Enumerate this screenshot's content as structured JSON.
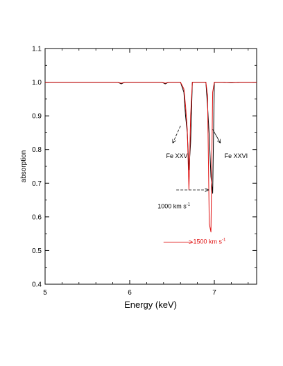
{
  "chart_data": {
    "type": "line",
    "xlabel": "Energy (keV)",
    "ylabel": "absorption",
    "xlim": [
      5,
      7.5
    ],
    "ylim": [
      0.4,
      1.1
    ],
    "x_ticks": [
      5,
      6,
      7
    ],
    "x_tick_labels": [
      "5",
      "6",
      "7"
    ],
    "y_ticks": [
      0.4,
      0.5,
      0.6,
      0.7,
      0.8,
      0.9,
      1.0,
      1.1
    ],
    "y_tick_labels": [
      "0.4",
      "0.5",
      "0.6",
      "0.7",
      "0.8",
      "0.9",
      "1.0",
      "1.1"
    ],
    "grid": false,
    "series": [
      {
        "color": "#000000",
        "x": [
          5.0,
          5.86,
          5.9,
          5.94,
          6.38,
          6.42,
          6.46,
          6.6,
          6.64,
          6.66,
          6.68,
          6.7,
          6.72,
          6.74,
          6.78,
          6.85,
          6.9,
          6.92,
          6.94,
          6.96,
          6.98,
          7.0,
          7.1,
          7.2,
          7.3,
          7.5
        ],
        "y": [
          1.0,
          1.0,
          0.995,
          1.0,
          1.0,
          0.995,
          1.0,
          1.0,
          0.97,
          0.9,
          0.85,
          0.74,
          0.82,
          1.0,
          1.0,
          1.0,
          1.0,
          0.93,
          0.84,
          0.72,
          0.67,
          1.0,
          1.0,
          0.998,
          1.0,
          1.0
        ]
      },
      {
        "color": "#e01010",
        "x": [
          5.0,
          5.86,
          5.9,
          5.94,
          6.38,
          6.42,
          6.46,
          6.6,
          6.64,
          6.66,
          6.68,
          6.7,
          6.72,
          6.74,
          6.78,
          6.85,
          6.9,
          6.92,
          6.94,
          6.96,
          6.98,
          7.0,
          7.1,
          7.2,
          7.3,
          7.5
        ],
        "y": [
          1.0,
          1.0,
          0.997,
          1.0,
          1.0,
          0.997,
          1.0,
          1.0,
          0.98,
          0.93,
          0.86,
          0.68,
          0.9,
          1.0,
          1.0,
          1.0,
          1.0,
          0.96,
          0.58,
          0.555,
          0.97,
          1.0,
          1.0,
          0.999,
          1.0,
          1.0
        ]
      }
    ],
    "annotations": [
      {
        "text": "Fe XXV",
        "x": 6.43,
        "y": 0.775,
        "color": "#000000"
      },
      {
        "text": "Fe XXVI",
        "x": 7.12,
        "y": 0.775,
        "color": "#000000"
      },
      {
        "text": "1000 km s",
        "superscript": "-1",
        "x": 6.33,
        "y": 0.625,
        "color": "#000000"
      },
      {
        "text": "1500 km s",
        "superscript": "-1",
        "x": 6.75,
        "y": 0.52,
        "color": "#e01010"
      }
    ],
    "arrows": [
      {
        "color": "#000000",
        "from": [
          6.6,
          0.87
        ],
        "to": [
          6.51,
          0.82
        ],
        "dashed": true
      },
      {
        "color": "#000000",
        "from": [
          6.98,
          0.86
        ],
        "to": [
          7.07,
          0.82
        ],
        "dashed": false
      },
      {
        "color": "#000000",
        "from": [
          6.55,
          0.68
        ],
        "to": [
          6.93,
          0.68
        ],
        "dashed": true
      },
      {
        "color": "#e01010",
        "from": [
          6.4,
          0.525
        ],
        "to": [
          6.74,
          0.525
        ],
        "dashed": false
      }
    ]
  }
}
